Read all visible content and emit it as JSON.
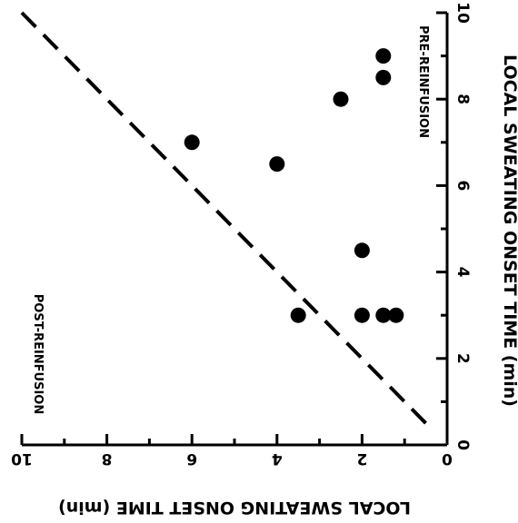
{
  "chart_data": {
    "type": "scatter",
    "x_axis": {
      "label": "LOCAL SWEATING ONSET TIME (min)",
      "range": [
        0,
        10
      ],
      "ticks": [
        0,
        2,
        4,
        6,
        8,
        10
      ],
      "reversed": true,
      "rotated_180": true
    },
    "y_axis": {
      "label": "LOCAL SWEATING ONSET TIME (min)",
      "range": [
        0,
        10
      ],
      "ticks": [
        0,
        2,
        4,
        6,
        8,
        10
      ],
      "side": "right",
      "rotated_90": true
    },
    "reference_line": {
      "style": "dashed",
      "from": [
        10,
        10
      ],
      "to": [
        0.5,
        0.5
      ]
    },
    "annotations": [
      "POST-REINFUSION",
      "PRE-REINFUSION"
    ],
    "grid": false,
    "points": [
      {
        "x": 6.0,
        "y": 7.0
      },
      {
        "x": 4.0,
        "y": 6.5
      },
      {
        "x": 2.5,
        "y": 8.0
      },
      {
        "x": 1.5,
        "y": 8.5
      },
      {
        "x": 1.5,
        "y": 9.0
      },
      {
        "x": 2.0,
        "y": 4.5
      },
      {
        "x": 3.5,
        "y": 3.0
      },
      {
        "x": 2.0,
        "y": 3.0
      },
      {
        "x": 1.5,
        "y": 3.0
      },
      {
        "x": 1.2,
        "y": 3.0
      }
    ]
  }
}
